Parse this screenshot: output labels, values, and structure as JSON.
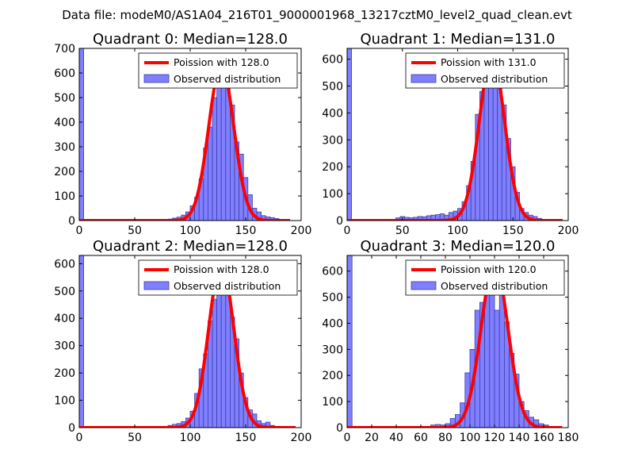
{
  "figure_title": "Data file: modeM0/AS1A04_216T01_9000001968_13217cztM0_level2_quad_clean.evt",
  "colors": {
    "bar_fill": "#7f7fff",
    "bar_edge": "#3e3ea8",
    "curve": "#ff0000"
  },
  "chart_data": [
    {
      "type": "bar",
      "title": "Quadrant 0: Median=128.0",
      "median": 128.0,
      "xlim": [
        0,
        200
      ],
      "ylim": [
        0,
        700
      ],
      "xticks": [
        0,
        50,
        100,
        150,
        200
      ],
      "yticks": [
        0,
        100,
        200,
        300,
        400,
        500,
        600,
        700
      ],
      "legend": {
        "location": "top-right",
        "entries": [
          "Poission with 128.0",
          "Observed distribution"
        ]
      },
      "bin_width": 4,
      "bins": [
        {
          "x0": 0,
          "v": 700
        },
        {
          "x0": 80,
          "v": 6
        },
        {
          "x0": 84,
          "v": 10
        },
        {
          "x0": 88,
          "v": 14
        },
        {
          "x0": 92,
          "v": 22
        },
        {
          "x0": 96,
          "v": 35
        },
        {
          "x0": 100,
          "v": 60
        },
        {
          "x0": 104,
          "v": 95
        },
        {
          "x0": 108,
          "v": 170
        },
        {
          "x0": 112,
          "v": 295
        },
        {
          "x0": 116,
          "v": 380
        },
        {
          "x0": 120,
          "v": 500
        },
        {
          "x0": 124,
          "v": 590
        },
        {
          "x0": 128,
          "v": 615
        },
        {
          "x0": 132,
          "v": 585
        },
        {
          "x0": 136,
          "v": 470
        },
        {
          "x0": 140,
          "v": 320
        },
        {
          "x0": 144,
          "v": 270
        },
        {
          "x0": 148,
          "v": 175
        },
        {
          "x0": 152,
          "v": 105
        },
        {
          "x0": 156,
          "v": 50
        },
        {
          "x0": 160,
          "v": 35
        },
        {
          "x0": 164,
          "v": 20
        },
        {
          "x0": 168,
          "v": 15
        },
        {
          "x0": 172,
          "v": 12
        },
        {
          "x0": 176,
          "v": 8
        },
        {
          "x0": 180,
          "v": 5
        }
      ],
      "curve": {
        "lambda": 128,
        "peak": 630,
        "x_range": [
          0,
          190
        ]
      }
    },
    {
      "type": "bar",
      "title": "Quadrant 1: Median=131.0",
      "median": 131.0,
      "xlim": [
        0,
        200
      ],
      "ylim": [
        0,
        640
      ],
      "xticks": [
        0,
        50,
        100,
        150,
        200
      ],
      "yticks": [
        0,
        100,
        200,
        300,
        400,
        500,
        600
      ],
      "legend": {
        "location": "top-right",
        "entries": [
          "Poission with 131.0",
          "Observed distribution"
        ]
      },
      "bin_width": 4,
      "bins": [
        {
          "x0": 0,
          "v": 640
        },
        {
          "x0": 44,
          "v": 10
        },
        {
          "x0": 48,
          "v": 15
        },
        {
          "x0": 52,
          "v": 12
        },
        {
          "x0": 56,
          "v": 10
        },
        {
          "x0": 60,
          "v": 12
        },
        {
          "x0": 64,
          "v": 15
        },
        {
          "x0": 68,
          "v": 14
        },
        {
          "x0": 72,
          "v": 18
        },
        {
          "x0": 76,
          "v": 20
        },
        {
          "x0": 80,
          "v": 22
        },
        {
          "x0": 84,
          "v": 25
        },
        {
          "x0": 88,
          "v": 20
        },
        {
          "x0": 92,
          "v": 30
        },
        {
          "x0": 96,
          "v": 35
        },
        {
          "x0": 100,
          "v": 45
        },
        {
          "x0": 104,
          "v": 70
        },
        {
          "x0": 108,
          "v": 130
        },
        {
          "x0": 112,
          "v": 220
        },
        {
          "x0": 116,
          "v": 395
        },
        {
          "x0": 120,
          "v": 480
        },
        {
          "x0": 124,
          "v": 590
        },
        {
          "x0": 128,
          "v": 620
        },
        {
          "x0": 132,
          "v": 600
        },
        {
          "x0": 136,
          "v": 575
        },
        {
          "x0": 140,
          "v": 430
        },
        {
          "x0": 144,
          "v": 305
        },
        {
          "x0": 148,
          "v": 200
        },
        {
          "x0": 152,
          "v": 105
        },
        {
          "x0": 156,
          "v": 45
        },
        {
          "x0": 160,
          "v": 30
        },
        {
          "x0": 164,
          "v": 20
        },
        {
          "x0": 168,
          "v": 15
        },
        {
          "x0": 172,
          "v": 8
        }
      ],
      "curve": {
        "lambda": 131,
        "peak": 610,
        "x_range": [
          0,
          195
        ]
      }
    },
    {
      "type": "bar",
      "title": "Quadrant 2: Median=128.0",
      "median": 128.0,
      "xlim": [
        0,
        200
      ],
      "ylim": [
        0,
        630
      ],
      "xticks": [
        0,
        50,
        100,
        150,
        200
      ],
      "yticks": [
        0,
        100,
        200,
        300,
        400,
        500,
        600
      ],
      "legend": {
        "location": "top-right",
        "entries": [
          "Poission with 128.0",
          "Observed distribution"
        ]
      },
      "bin_width": 4,
      "bins": [
        {
          "x0": 0,
          "v": 630
        },
        {
          "x0": 80,
          "v": 8
        },
        {
          "x0": 84,
          "v": 12
        },
        {
          "x0": 88,
          "v": 15
        },
        {
          "x0": 92,
          "v": 22
        },
        {
          "x0": 96,
          "v": 35
        },
        {
          "x0": 100,
          "v": 60
        },
        {
          "x0": 104,
          "v": 125
        },
        {
          "x0": 108,
          "v": 215
        },
        {
          "x0": 112,
          "v": 270
        },
        {
          "x0": 116,
          "v": 390
        },
        {
          "x0": 120,
          "v": 470
        },
        {
          "x0": 124,
          "v": 560
        },
        {
          "x0": 128,
          "v": 600
        },
        {
          "x0": 132,
          "v": 570
        },
        {
          "x0": 136,
          "v": 405
        },
        {
          "x0": 140,
          "v": 325
        },
        {
          "x0": 144,
          "v": 200
        },
        {
          "x0": 148,
          "v": 110
        },
        {
          "x0": 152,
          "v": 65
        },
        {
          "x0": 156,
          "v": 50
        },
        {
          "x0": 160,
          "v": 25
        },
        {
          "x0": 164,
          "v": 15
        },
        {
          "x0": 168,
          "v": 20
        },
        {
          "x0": 172,
          "v": 8
        }
      ],
      "curve": {
        "lambda": 128,
        "peak": 600,
        "x_range": [
          0,
          195
        ]
      }
    },
    {
      "type": "bar",
      "title": "Quadrant 3: Median=120.0",
      "median": 120.0,
      "xlim": [
        0,
        180
      ],
      "ylim": [
        0,
        660
      ],
      "xticks": [
        0,
        20,
        40,
        60,
        80,
        100,
        120,
        140,
        160,
        180
      ],
      "yticks": [
        0,
        100,
        200,
        300,
        400,
        500,
        600
      ],
      "legend": {
        "location": "top-right",
        "entries": [
          "Poission with 120.0",
          "Observed distribution"
        ]
      },
      "bin_width": 4,
      "bins": [
        {
          "x0": 0,
          "v": 660
        },
        {
          "x0": 68,
          "v": 10
        },
        {
          "x0": 72,
          "v": 12
        },
        {
          "x0": 76,
          "v": 10
        },
        {
          "x0": 80,
          "v": 15
        },
        {
          "x0": 84,
          "v": 35
        },
        {
          "x0": 88,
          "v": 50
        },
        {
          "x0": 92,
          "v": 95
        },
        {
          "x0": 96,
          "v": 210
        },
        {
          "x0": 100,
          "v": 300
        },
        {
          "x0": 104,
          "v": 450
        },
        {
          "x0": 108,
          "v": 480
        },
        {
          "x0": 112,
          "v": 590
        },
        {
          "x0": 116,
          "v": 600
        },
        {
          "x0": 120,
          "v": 450
        },
        {
          "x0": 124,
          "v": 600
        },
        {
          "x0": 128,
          "v": 405
        },
        {
          "x0": 132,
          "v": 285
        },
        {
          "x0": 136,
          "v": 205
        },
        {
          "x0": 140,
          "v": 100
        },
        {
          "x0": 144,
          "v": 65
        },
        {
          "x0": 148,
          "v": 40
        },
        {
          "x0": 152,
          "v": 30
        },
        {
          "x0": 156,
          "v": 15
        },
        {
          "x0": 160,
          "v": 10
        }
      ],
      "curve": {
        "lambda": 120,
        "peak": 630,
        "x_range": [
          0,
          175
        ]
      }
    }
  ]
}
